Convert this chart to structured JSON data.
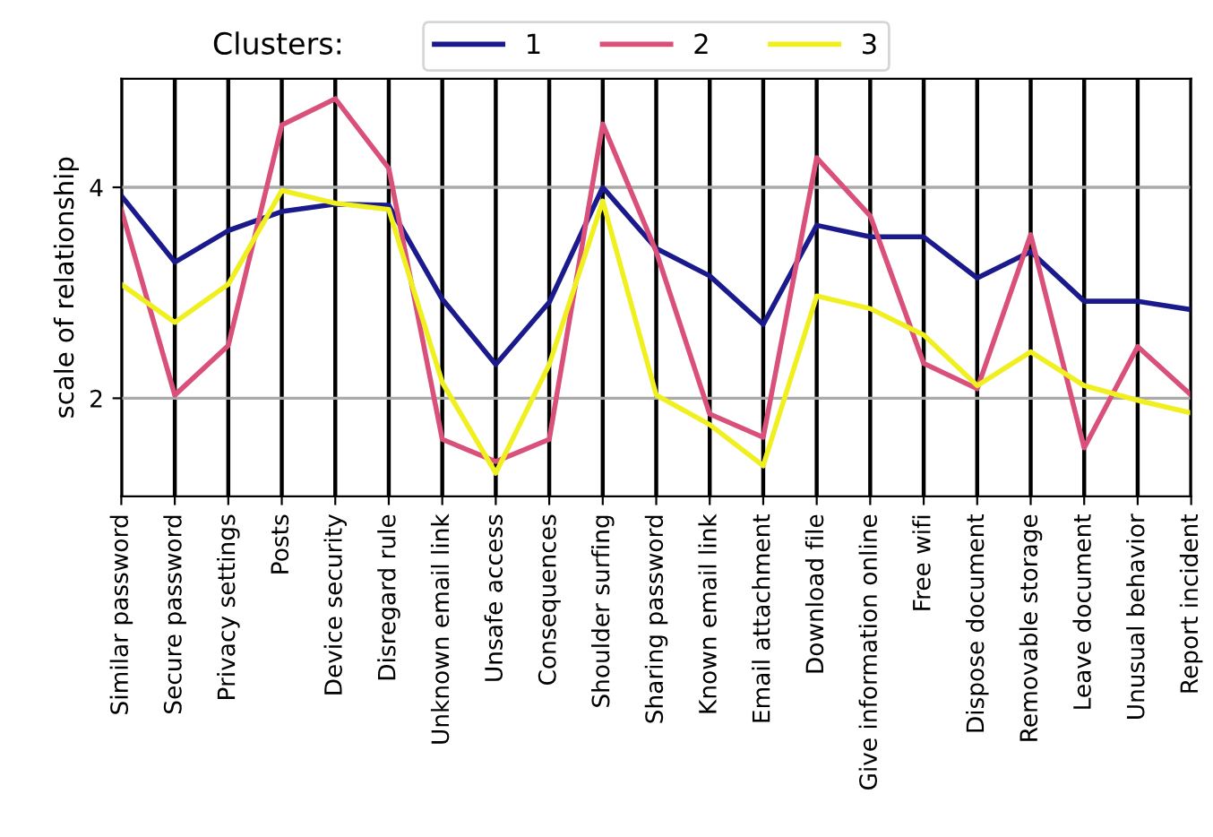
{
  "chart_data": {
    "type": "line",
    "ylabel": "scale of relationship",
    "legend_title": "Clusters:",
    "categories": [
      "Similar password",
      "Secure password",
      "Privacy settings",
      "Posts",
      "Device security",
      "Disregard rule",
      "Unknown email link",
      "Unsafe access",
      "Consequences",
      "Shoulder surfing",
      "Sharing password",
      "Known email link",
      "Email attachment",
      "Download file",
      "Give information online",
      "Free wifi",
      "Dispose document",
      "Removable storage",
      "Leave document",
      "Unusual behavior",
      "Report incident"
    ],
    "series": [
      {
        "name": "1",
        "color": "#1a1a8c",
        "values": [
          3.92,
          3.29,
          3.59,
          3.77,
          3.84,
          3.83,
          2.94,
          2.32,
          2.91,
          4.0,
          3.42,
          3.16,
          2.7,
          3.64,
          3.53,
          3.53,
          3.14,
          3.39,
          2.92,
          2.92,
          2.84
        ]
      },
      {
        "name": "2",
        "color": "#d9507a",
        "values": [
          3.79,
          2.03,
          2.5,
          4.59,
          4.84,
          4.18,
          1.61,
          1.4,
          1.61,
          4.6,
          3.39,
          1.85,
          1.63,
          4.28,
          3.73,
          2.33,
          2.09,
          3.55,
          1.53,
          2.49,
          2.03
        ]
      },
      {
        "name": "3",
        "color": "#f0f020",
        "values": [
          3.08,
          2.72,
          3.08,
          3.97,
          3.85,
          3.79,
          2.15,
          1.29,
          2.32,
          3.87,
          2.03,
          1.75,
          1.36,
          2.97,
          2.85,
          2.6,
          2.12,
          2.44,
          2.12,
          1.98,
          1.86
        ]
      }
    ],
    "ylim": [
      1.07,
      5.03
    ],
    "yticks": [
      2,
      4
    ],
    "grid": true,
    "legend": "top",
    "marker": "none",
    "line_style": "solid"
  }
}
